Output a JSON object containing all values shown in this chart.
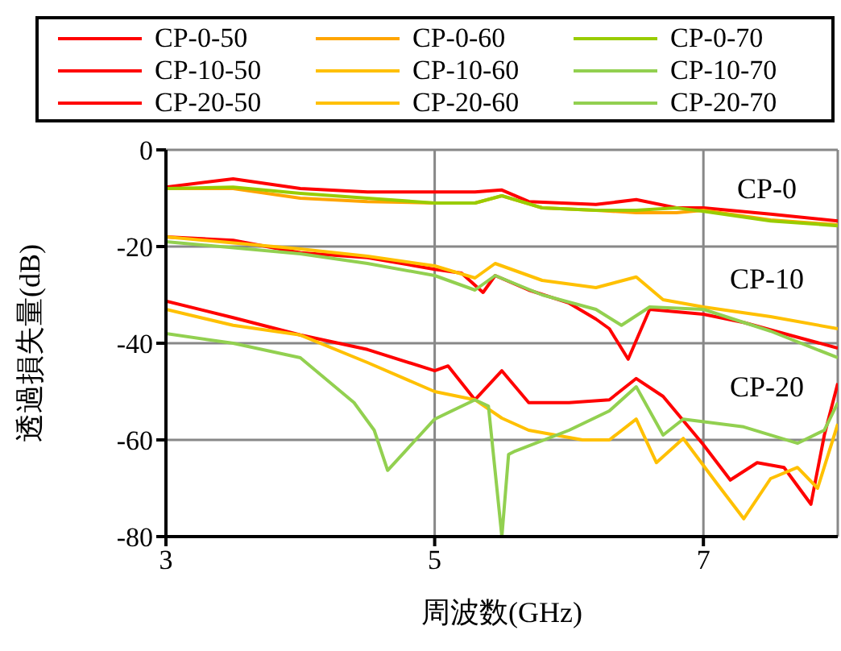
{
  "chart_data": {
    "type": "line",
    "xlabel": "周波数(GHz)",
    "ylabel": "透過損失量(dB)",
    "xlim": [
      3,
      8
    ],
    "xticks": [
      3,
      5,
      7
    ],
    "ylim": [
      -80,
      0
    ],
    "yticks": [
      0,
      -20,
      -40,
      -60,
      -80
    ],
    "grid": true,
    "legend": "top",
    "marker": "none",
    "line_style": "solid",
    "annotations": [
      "CP-0",
      "CP-10",
      "CP-20"
    ],
    "series": [
      {
        "name": "CP-0-50",
        "color": "#ff0000",
        "x": [
          3,
          3.5,
          4,
          4.5,
          5,
          5.3,
          5.5,
          5.7,
          6.2,
          6.5,
          6.8,
          7,
          7.5,
          8
        ],
        "values": [
          -7.7,
          -6,
          -8,
          -8.7,
          -8.7,
          -8.7,
          -8.3,
          -10.7,
          -11.3,
          -10.3,
          -12,
          -12,
          -13.3,
          -14.7
        ]
      },
      {
        "name": "CP-0-60",
        "color": "#ffa500",
        "x": [
          3,
          3.5,
          4,
          4.5,
          5,
          5.3,
          5.5,
          5.8,
          6.2,
          6.5,
          6.8,
          7,
          7.5,
          8
        ],
        "values": [
          -8,
          -8,
          -10,
          -10.7,
          -11,
          -11,
          -9.5,
          -12,
          -12.5,
          -13,
          -13,
          -12.5,
          -14.5,
          -15.5
        ]
      },
      {
        "name": "CP-0-70",
        "color": "#99cc00",
        "x": [
          3,
          3.5,
          4,
          4.5,
          5,
          5.3,
          5.5,
          5.8,
          6.2,
          6.5,
          6.8,
          7,
          7.5,
          8
        ],
        "values": [
          -8,
          -7.7,
          -9,
          -10,
          -11,
          -11,
          -9.5,
          -12,
          -12.5,
          -12.5,
          -12,
          -12.7,
          -14.7,
          -15.7
        ]
      },
      {
        "name": "CP-10-50",
        "color": "#ff0000",
        "x": [
          3,
          3.5,
          4,
          4.5,
          5,
          5.2,
          5.36,
          5.45,
          5.7,
          6,
          6.2,
          6.3,
          6.44,
          6.6,
          7,
          7.3,
          7.6,
          8
        ],
        "values": [
          -18,
          -18.7,
          -21.3,
          -22.3,
          -24.7,
          -25.5,
          -29.5,
          -26,
          -29,
          -31.7,
          -35,
          -37,
          -43.3,
          -33,
          -34,
          -35.7,
          -38,
          -41
        ]
      },
      {
        "name": "CP-10-60",
        "color": "#ffc000",
        "x": [
          3,
          4,
          4.5,
          5,
          5.3,
          5.45,
          5.8,
          6.2,
          6.5,
          6.7,
          7,
          7.5,
          8
        ],
        "values": [
          -18,
          -20.5,
          -22,
          -24,
          -26.5,
          -23.5,
          -27,
          -28.5,
          -26.3,
          -31,
          -32.5,
          -34.5,
          -37
        ]
      },
      {
        "name": "CP-10-70",
        "color": "#92d050",
        "x": [
          3,
          4,
          4.5,
          5,
          5.3,
          5.45,
          5.8,
          6.2,
          6.39,
          6.6,
          7,
          7.5,
          8
        ],
        "values": [
          -19,
          -21.5,
          -23.5,
          -26,
          -29,
          -26,
          -30,
          -33,
          -36.3,
          -32.5,
          -33,
          -37.5,
          -43
        ]
      },
      {
        "name": "CP-20-50",
        "color": "#ff0000",
        "x": [
          3,
          3.5,
          4,
          4.5,
          5,
          5.1,
          5.3,
          5.5,
          5.7,
          6,
          6.3,
          6.5,
          6.7,
          7,
          7.2,
          7.4,
          7.6,
          7.8,
          7.9,
          8
        ],
        "values": [
          -31.3,
          -34.7,
          -38.3,
          -41.3,
          -45.7,
          -44.7,
          -51.7,
          -45.7,
          -52.3,
          -52.3,
          -51.7,
          -47.3,
          -51,
          -61,
          -68.3,
          -64.7,
          -65.7,
          -73.3,
          -59,
          -48.3
        ]
      },
      {
        "name": "CP-20-60",
        "color": "#ffc000",
        "x": [
          3,
          3.5,
          4,
          4.5,
          5,
          5.3,
          5.5,
          5.7,
          5.9,
          6.1,
          6.3,
          6.5,
          6.65,
          6.85,
          7.1,
          7.3,
          7.5,
          7.7,
          7.85,
          8
        ],
        "values": [
          -33,
          -36.3,
          -38.3,
          -44,
          -50,
          -51.7,
          -55.5,
          -58,
          -59,
          -60,
          -60,
          -55.7,
          -64.7,
          -59.7,
          -69,
          -76.3,
          -68,
          -65.7,
          -70,
          -56.7
        ]
      },
      {
        "name": "CP-20-70",
        "color": "#92d050",
        "x": [
          3,
          3.5,
          4,
          4.4,
          4.55,
          4.65,
          5,
          5.3,
          5.4,
          5.5,
          5.55,
          5.6,
          6,
          6.3,
          6.5,
          6.7,
          6.85,
          7.3,
          7.7,
          7.9,
          8
        ],
        "values": [
          -38,
          -40,
          -43,
          -52.3,
          -58,
          -66.3,
          -55.7,
          -51.7,
          -53,
          -80,
          -63,
          -62.3,
          -58,
          -54,
          -49,
          -59,
          -55.7,
          -57.3,
          -60.7,
          -58,
          -52.3
        ]
      }
    ]
  }
}
